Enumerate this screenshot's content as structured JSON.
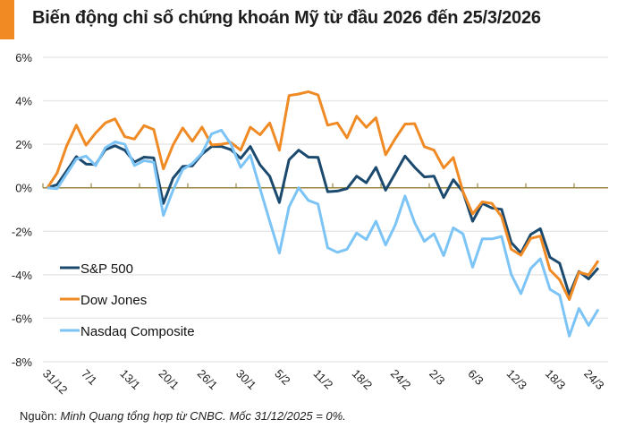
{
  "title": "Biến động chỉ số chứng khoán Mỹ từ đầu 2026 đến 25/3/2026",
  "source": {
    "label": "Nguồn:",
    "text": "Minh Quang tổng hợp từ CNBC. Mốc 31/12/2025 = 0%."
  },
  "colors": {
    "accent": "#f28a24",
    "sp500": "#1b4a6e",
    "dow": "#f08a24",
    "nasdaq": "#7cc4f6",
    "zero_axis": "#9a8540",
    "grid": "#e8e8e8"
  },
  "chart_data": {
    "type": "line",
    "title": "Biến động chỉ số chứng khoán Mỹ từ đầu 2026 đến 25/3/2026",
    "ylim": [
      -8,
      6
    ],
    "y_ticks": [
      "6%",
      "4%",
      "2%",
      "0%",
      "-2%",
      "-4%",
      "-6%",
      "-8%"
    ],
    "y_tick_values": [
      6,
      4,
      2,
      0,
      -2,
      -4,
      -6,
      -8
    ],
    "grid": true,
    "legend_position": "bottom-left",
    "x_labels": [
      "31/12",
      "7/1",
      "13/1",
      "20/1",
      "26/1",
      "30/1",
      "5/2",
      "11/2",
      "18/2",
      "24/2",
      "2/3",
      "6/3",
      "12/3",
      "18/3",
      "24/3"
    ],
    "x_label_every": 4,
    "series": [
      {
        "name": "S&P 500",
        "color": "#1b4a6e",
        "values": [
          0,
          0.14,
          0.78,
          1.43,
          1.09,
          1.07,
          1.75,
          1.93,
          1.73,
          1.18,
          1.41,
          1.37,
          -0.72,
          0.44,
          0.98,
          1.01,
          1.55,
          1.9,
          1.9,
          1.75,
          1.35,
          1.9,
          1.05,
          0.53,
          -0.68,
          1.29,
          1.73,
          1.41,
          1.4,
          -0.18,
          -0.15,
          -0.04,
          0.53,
          0.23,
          0.94,
          -0.11,
          0.67,
          1.46,
          0.94,
          0.5,
          0.53,
          -0.45,
          0.37,
          -0.18,
          -1.54,
          -0.72,
          -0.93,
          -0.99,
          -2.52,
          -3.0,
          -2.15,
          -1.88,
          -3.2,
          -3.47,
          -4.91,
          -3.85,
          -4.19,
          -3.69
        ]
      },
      {
        "name": "Dow Jones",
        "color": "#f08a24",
        "values": [
          0,
          0.67,
          1.93,
          2.88,
          1.96,
          2.52,
          2.98,
          3.17,
          2.35,
          2.24,
          2.86,
          2.68,
          0.87,
          1.97,
          2.75,
          2.14,
          2.79,
          1.97,
          2.0,
          2.08,
          1.73,
          2.79,
          2.44,
          2.98,
          1.73,
          4.24,
          4.31,
          4.42,
          4.27,
          2.88,
          2.98,
          2.3,
          3.29,
          2.78,
          3.22,
          1.52,
          2.27,
          2.93,
          2.95,
          1.89,
          1.73,
          0.91,
          1.39,
          -0.18,
          -1.2,
          -0.65,
          -0.72,
          -1.33,
          -2.83,
          -3.1,
          -2.33,
          -2.22,
          -3.78,
          -4.23,
          -5.14,
          -3.88,
          -4.01,
          -3.35
        ]
      },
      {
        "name": "Nasdaq Composite",
        "color": "#7cc4f6",
        "values": [
          0,
          -0.04,
          0.64,
          1.32,
          1.46,
          1.02,
          1.84,
          2.11,
          2.0,
          1.02,
          1.25,
          1.18,
          -1.27,
          -0.11,
          0.84,
          1.12,
          1.59,
          2.48,
          2.65,
          2.0,
          0.94,
          1.5,
          -0.04,
          -1.54,
          -3.0,
          -0.88,
          0,
          -0.58,
          -0.75,
          -2.76,
          -2.97,
          -2.83,
          -2.08,
          -2.38,
          -1.54,
          -2.63,
          -1.7,
          -0.38,
          -1.61,
          -2.46,
          -2.12,
          -3.12,
          -1.84,
          -2.12,
          -3.65,
          -2.35,
          -2.35,
          -2.24,
          -3.99,
          -4.87,
          -3.71,
          -3.27,
          -4.67,
          -4.94,
          -6.82,
          -5.55,
          -6.33,
          -5.59
        ]
      }
    ]
  }
}
